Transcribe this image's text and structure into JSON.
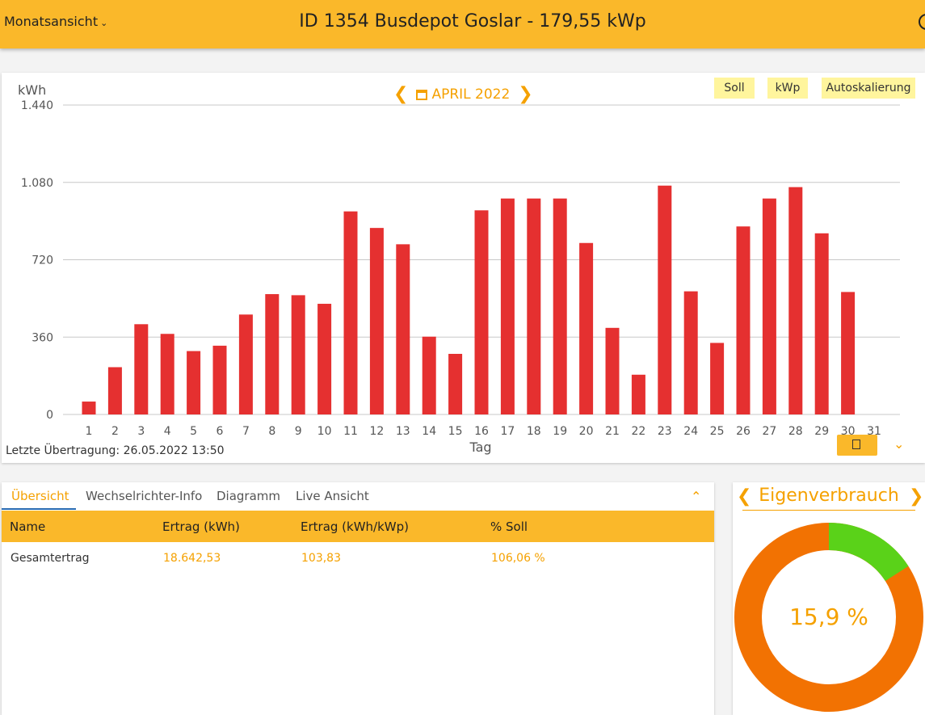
{
  "header": {
    "view_select": "Monatsansicht",
    "title": "ID 1354 Busdepot Goslar - 179,55 kWp"
  },
  "chart_panel": {
    "month_label": "APRIL 2022",
    "buttons": {
      "soll": "Soll",
      "kwp": "kWp",
      "autoscale": "Autoskalierung"
    },
    "last_upload": "Letzte Übertragung: 26.05.2022 13:50"
  },
  "chart_data": {
    "type": "bar",
    "ylabel": "kWh",
    "xlabel": "Tag",
    "ylim": [
      0,
      1440
    ],
    "yticks": [
      0,
      360,
      720,
      1080,
      1440
    ],
    "ytick_labels": [
      "0",
      "360",
      "720",
      "1.080",
      "1.440"
    ],
    "categories": [
      "1",
      "2",
      "3",
      "4",
      "5",
      "6",
      "7",
      "8",
      "9",
      "10",
      "11",
      "12",
      "13",
      "14",
      "15",
      "16",
      "17",
      "18",
      "19",
      "20",
      "21",
      "22",
      "23",
      "24",
      "25",
      "26",
      "27",
      "28",
      "29",
      "30",
      "31"
    ],
    "values": [
      60,
      220,
      420,
      375,
      295,
      320,
      465,
      560,
      555,
      515,
      945,
      868,
      792,
      362,
      282,
      950,
      1005,
      1005,
      1005,
      798,
      403,
      185,
      1065,
      573,
      333,
      875,
      1005,
      1058,
      843,
      570,
      null
    ],
    "color": "#e53030",
    "grid": true
  },
  "tabs": [
    {
      "label": "Übersicht"
    },
    {
      "label": "Wechselrichter-Info"
    },
    {
      "label": "Diagramm"
    },
    {
      "label": "Live Ansicht"
    }
  ],
  "table": {
    "headers": [
      "Name",
      "Ertrag (kWh)",
      "Ertrag (kWh/kWp)",
      "% Soll"
    ],
    "rows": [
      [
        "Gesamtertrag",
        "18.642,53",
        "103,83",
        "106,06 %"
      ]
    ]
  },
  "eigenverbrauch": {
    "title": "Eigenverbrauch",
    "value_label": "15,9 %",
    "fraction": 0.159,
    "colors": {
      "self": "#5ad219",
      "rest": "#f27202"
    }
  },
  "colors": {
    "accent": "#fab82a",
    "text_accent": "#f5a100",
    "button_bg": "#fff59d"
  }
}
